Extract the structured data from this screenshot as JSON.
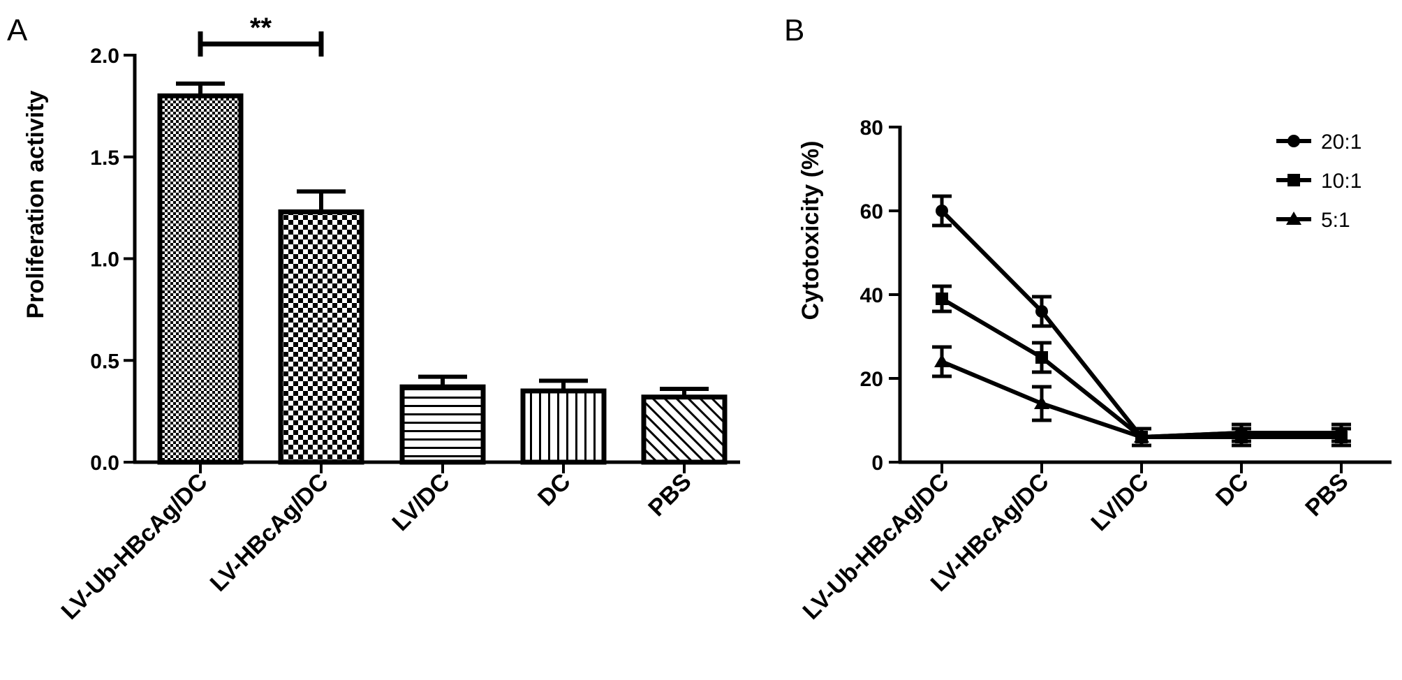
{
  "panels": {
    "a_label": "A",
    "b_label": "B"
  },
  "chart_data": [
    {
      "type": "bar",
      "panel": "A",
      "ylabel": "Proliferation activity",
      "xlabel": "",
      "categories": [
        "LV-Ub-HBcAg/DC",
        "LV-HBcAg/DC",
        "LV/DC",
        "DC",
        "PBS"
      ],
      "values": [
        1.8,
        1.23,
        0.37,
        0.35,
        0.32
      ],
      "errors": [
        0.06,
        0.1,
        0.05,
        0.05,
        0.04
      ],
      "patterns": [
        "fine-check",
        "checker",
        "horizontal-lines",
        "vertical-lines",
        "diagonal-lines"
      ],
      "ylim": [
        0,
        2.0
      ],
      "yticks": [
        0.0,
        0.5,
        1.0,
        1.5,
        2.0
      ],
      "ytick_labels": [
        "0.0",
        "0.5",
        "1.0",
        "1.5",
        "2.0"
      ],
      "significance": {
        "from": 0,
        "to": 1,
        "label": "**"
      },
      "grid": false
    },
    {
      "type": "line",
      "panel": "B",
      "ylabel": "Cytotoxicity (%)",
      "xlabel": "",
      "categories": [
        "LV-Ub-HBcAg/DC",
        "LV-HBcAg/DC",
        "LV/DC",
        "DC",
        "PBS"
      ],
      "ylim": [
        0,
        80
      ],
      "yticks": [
        0,
        20,
        40,
        60,
        80
      ],
      "ytick_labels": [
        "0",
        "20",
        "40",
        "60",
        "80"
      ],
      "legend_position": "top-right",
      "grid": false,
      "series": [
        {
          "name": "20:1",
          "marker": "circle",
          "values": [
            60,
            36,
            6,
            7,
            7
          ],
          "errors": [
            3.5,
            3.5,
            2,
            2,
            2
          ]
        },
        {
          "name": "10:1",
          "marker": "square",
          "values": [
            39,
            25,
            6,
            6,
            6
          ],
          "errors": [
            3,
            3.5,
            2,
            2,
            2
          ]
        },
        {
          "name": "5:1",
          "marker": "triangle",
          "values": [
            24,
            14,
            6,
            7,
            6
          ],
          "errors": [
            3.5,
            4,
            2,
            2,
            2
          ]
        }
      ]
    }
  ]
}
